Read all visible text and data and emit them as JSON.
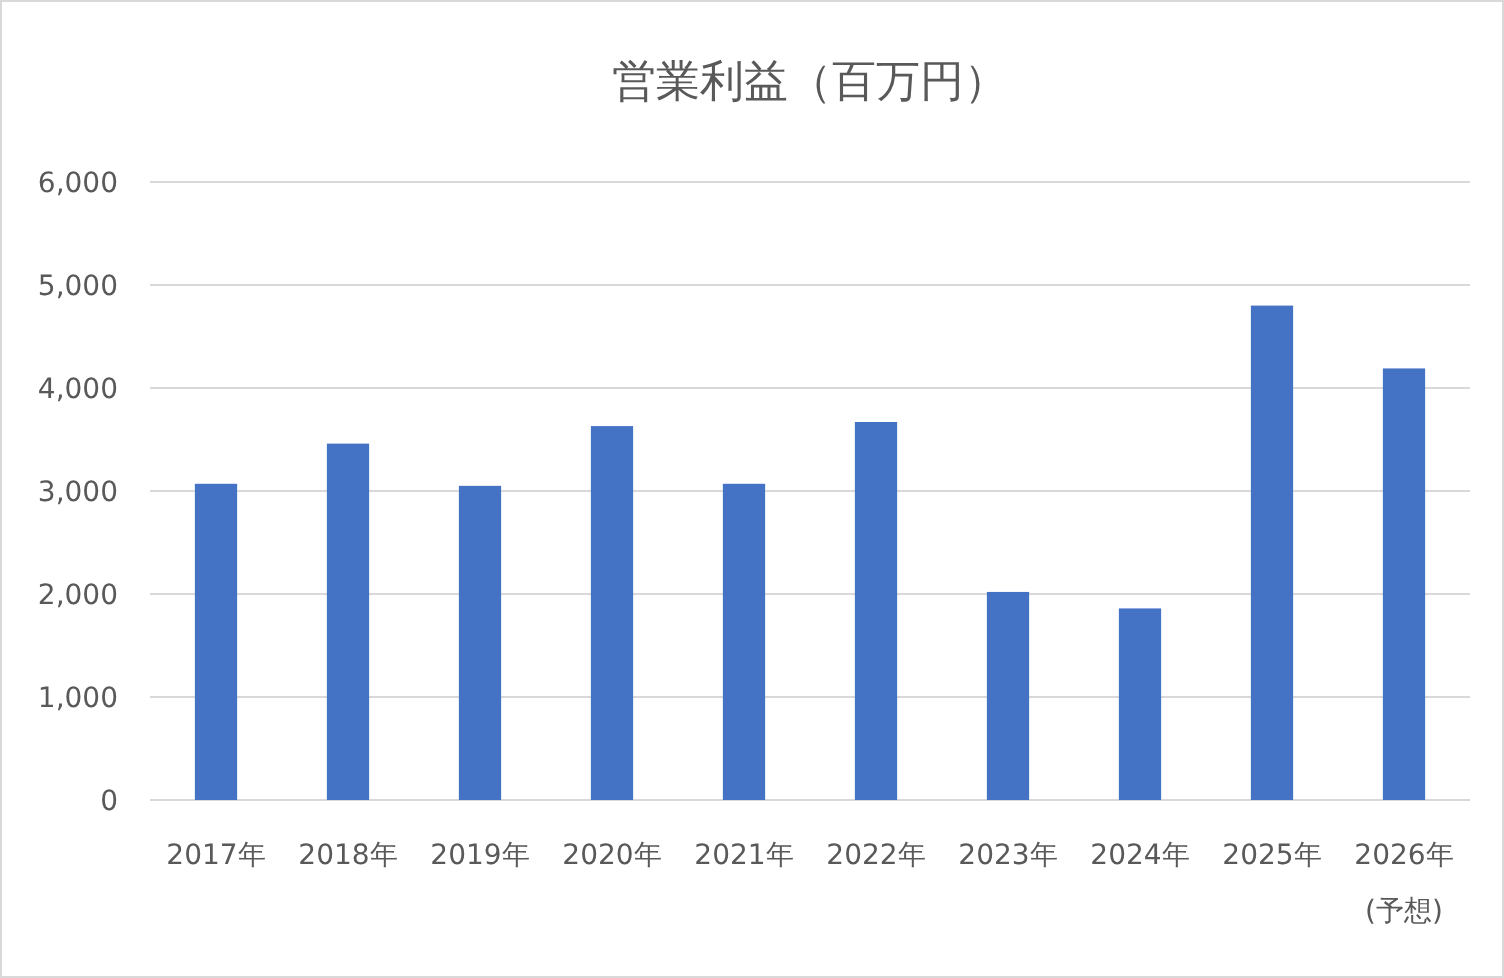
{
  "chart_data": {
    "type": "bar",
    "title": "営業利益（百万円）",
    "categories": [
      "2017年",
      "2018年",
      "2019年",
      "2020年",
      "2021年",
      "2022年",
      "2023年",
      "2024年",
      "2025年",
      "2026年\n(予想)"
    ],
    "values": [
      3070,
      3460,
      3050,
      3630,
      3070,
      3670,
      2020,
      1860,
      4800,
      4190
    ],
    "color": "#4472c4",
    "ylim": [
      0,
      6000
    ],
    "yticks": [
      {
        "value": 0,
        "label": "0"
      },
      {
        "value": 1000,
        "label": "1,000"
      },
      {
        "value": 2000,
        "label": "2,000"
      },
      {
        "value": 3000,
        "label": "3,000"
      },
      {
        "value": 4000,
        "label": "4,000"
      },
      {
        "value": 5000,
        "label": "5,000"
      },
      {
        "value": 6000,
        "label": "6,000"
      }
    ],
    "grid": "y"
  }
}
